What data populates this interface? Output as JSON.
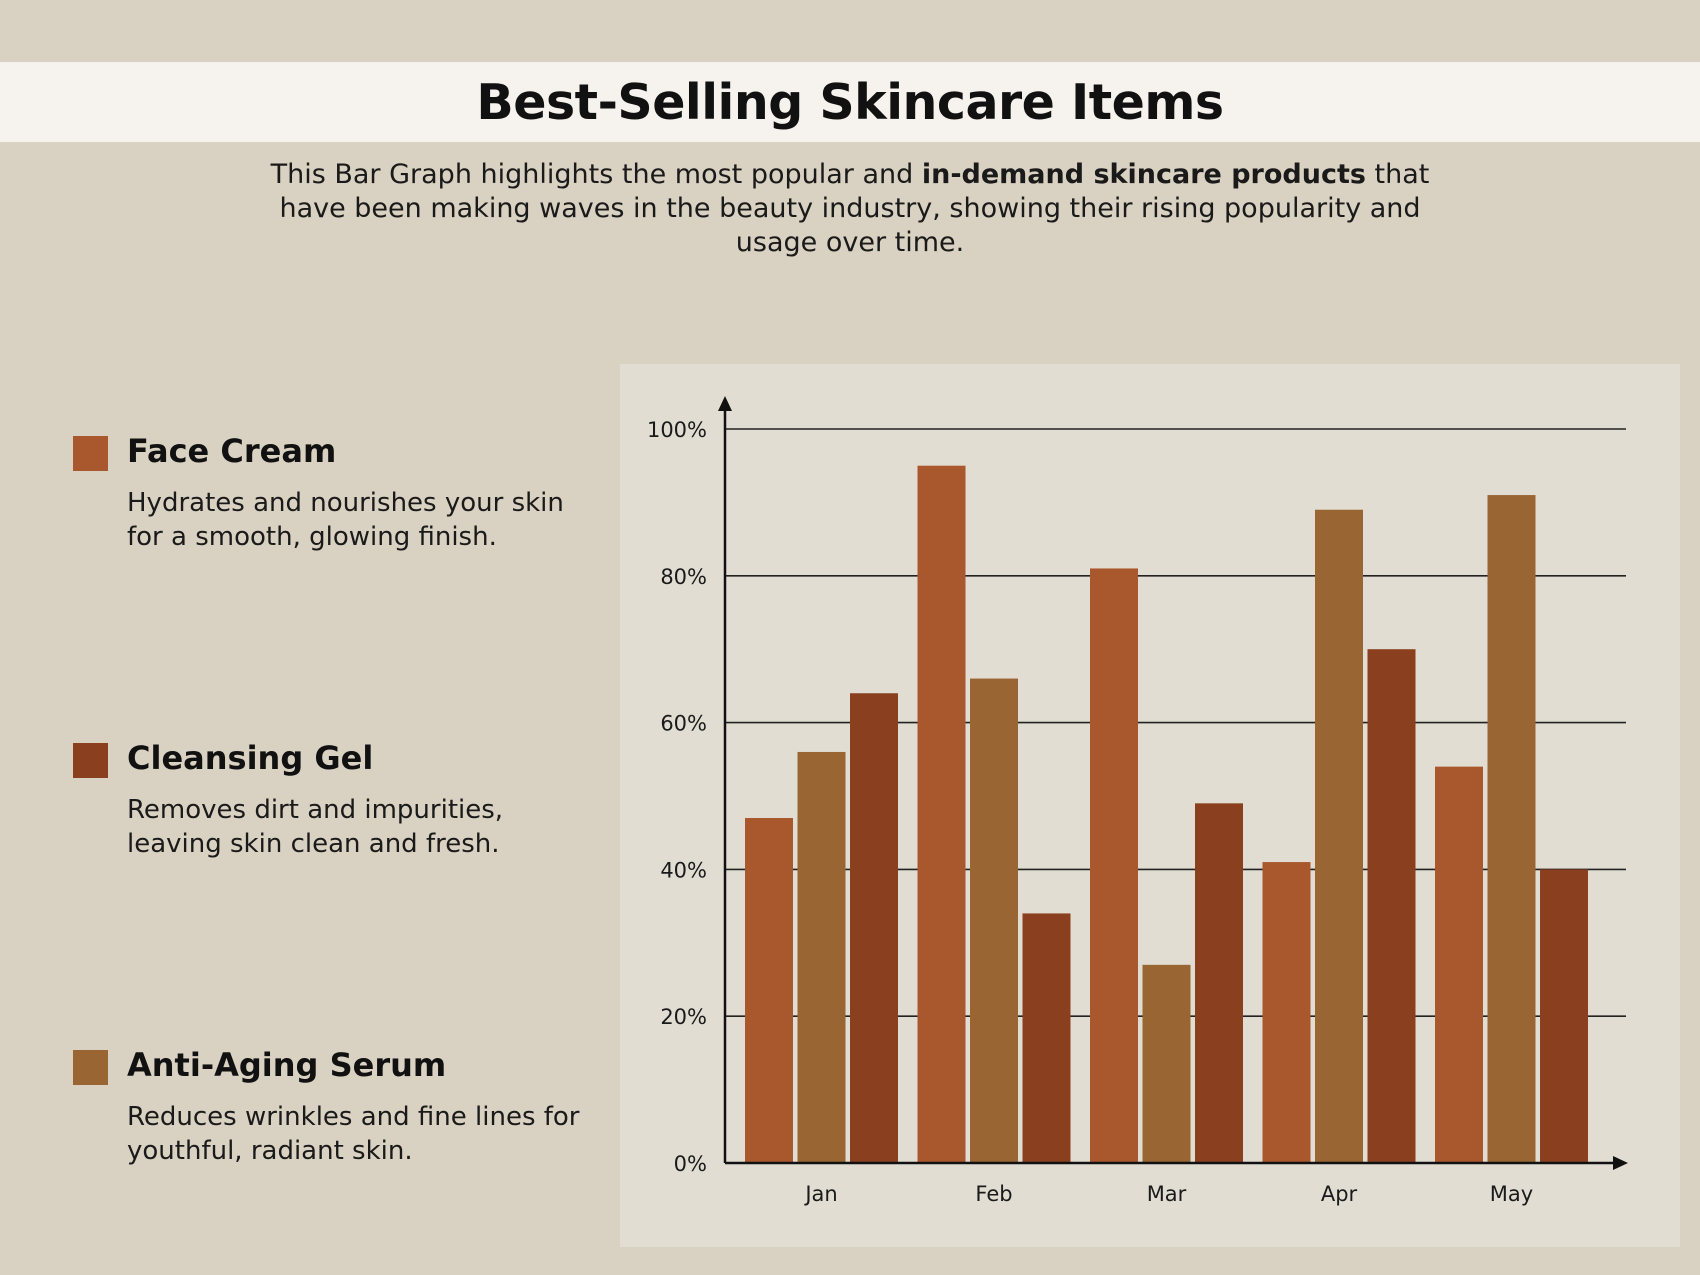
{
  "header": {
    "title": "Best-Selling Skincare Items",
    "subtitle_part1": "This Bar Graph highlights the most popular and ",
    "subtitle_bold": "in-demand skincare products",
    "subtitle_part2": " that have been making waves in the beauty industry, showing their rising popularity and usage over time."
  },
  "legend": [
    {
      "name": "Face Cream",
      "description": "Hydrates and nourishes your skin for a smooth, glowing finish.",
      "color": "#a9582e"
    },
    {
      "name": "Cleansing Gel",
      "description": "Removes dirt and impurities, leaving skin clean and fresh.",
      "color": "#8a401e"
    },
    {
      "name": "Anti-Aging Serum",
      "description": "Reduces wrinkles and fine lines for youthful, radiant skin.",
      "color": "#986533"
    }
  ],
  "chart_data": {
    "type": "bar",
    "categories": [
      "Jan",
      "Feb",
      "Mar",
      "Apr",
      "May"
    ],
    "series": [
      {
        "name": "Face Cream",
        "color": "#a9582e",
        "values": [
          47,
          95,
          81,
          41,
          54
        ]
      },
      {
        "name": "Anti-Aging Serum",
        "color": "#986533",
        "values": [
          56,
          66,
          27,
          89,
          91
        ]
      },
      {
        "name": "Cleansing Gel",
        "color": "#8a401e",
        "values": [
          64,
          34,
          49,
          70,
          40
        ]
      }
    ],
    "y_ticks": [
      "0%",
      "20%",
      "40%",
      "60%",
      "80%",
      "100%"
    ],
    "ylim": [
      0,
      100
    ],
    "grid": true
  }
}
